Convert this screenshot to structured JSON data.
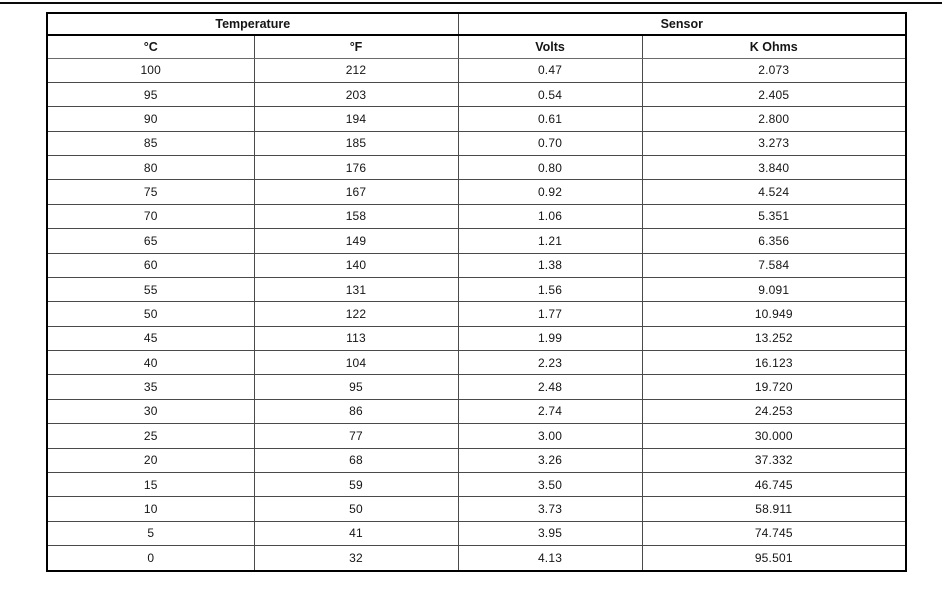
{
  "page": {
    "background": "#ffffff",
    "has_top_rule": true
  },
  "colors": {
    "outer_border": "#000000",
    "inner_border": "#4a4a4a",
    "text": "#151515",
    "top_rule": "#0a0a0a"
  },
  "table": {
    "group_headers": [
      {
        "label": "Temperature",
        "span": 2
      },
      {
        "label": "Sensor",
        "span": 2
      }
    ],
    "column_headers": [
      "°C",
      "°F",
      "Volts",
      "K Ohms"
    ],
    "column_keys": [
      "celsius",
      "fahrenheit",
      "volts",
      "kohms"
    ],
    "rows": [
      [
        "100",
        "212",
        "0.47",
        "2.073"
      ],
      [
        "95",
        "203",
        "0.54",
        "2.405"
      ],
      [
        "90",
        "194",
        "0.61",
        "2.800"
      ],
      [
        "85",
        "185",
        "0.70",
        "3.273"
      ],
      [
        "80",
        "176",
        "0.80",
        "3.840"
      ],
      [
        "75",
        "167",
        "0.92",
        "4.524"
      ],
      [
        "70",
        "158",
        "1.06",
        "5.351"
      ],
      [
        "65",
        "149",
        "1.21",
        "6.356"
      ],
      [
        "60",
        "140",
        "1.38",
        "7.584"
      ],
      [
        "55",
        "131",
        "1.56",
        "9.091"
      ],
      [
        "50",
        "122",
        "1.77",
        "10.949"
      ],
      [
        "45",
        "113",
        "1.99",
        "13.252"
      ],
      [
        "40",
        "104",
        "2.23",
        "16.123"
      ],
      [
        "35",
        "95",
        "2.48",
        "19.720"
      ],
      [
        "30",
        "86",
        "2.74",
        "24.253"
      ],
      [
        "25",
        "77",
        "3.00",
        "30.000"
      ],
      [
        "20",
        "68",
        "3.26",
        "37.332"
      ],
      [
        "15",
        "59",
        "3.50",
        "46.745"
      ],
      [
        "10",
        "50",
        "3.73",
        "58.911"
      ],
      [
        "5",
        "41",
        "3.95",
        "74.745"
      ],
      [
        "0",
        "32",
        "4.13",
        "95.501"
      ]
    ]
  }
}
